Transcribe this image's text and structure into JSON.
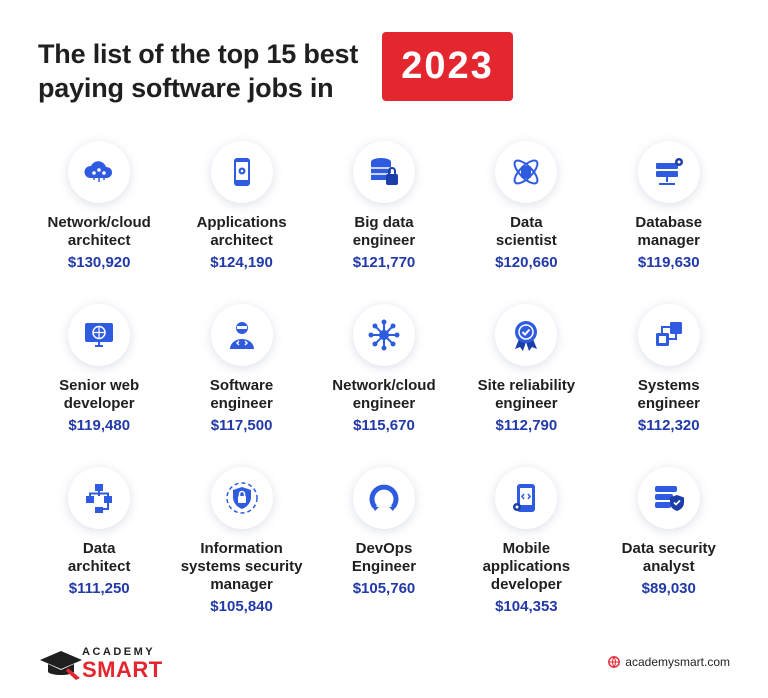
{
  "header": {
    "title": "The list of the top 15 best paying software jobs in",
    "year": "2023"
  },
  "colors": {
    "accent_red": "#e4262f",
    "salary_blue": "#2239a8",
    "icon_blue": "#2f5be0"
  },
  "jobs": [
    {
      "icon": "cloud-network-icon",
      "title": "Network/cloud\narchitect",
      "salary": "$130,920"
    },
    {
      "icon": "mobile-app-icon",
      "title": "Applications\narchitect",
      "salary": "$124,190"
    },
    {
      "icon": "database-lock-icon",
      "title": "Big data\nengineer",
      "salary": "$121,770"
    },
    {
      "icon": "atom-chip-icon",
      "title": "Data\nscientist",
      "salary": "$120,660"
    },
    {
      "icon": "server-gear-icon",
      "title": "Database\nmanager",
      "salary": "$119,630"
    },
    {
      "icon": "monitor-globe-icon",
      "title": "Senior web\ndeveloper",
      "salary": "$119,480"
    },
    {
      "icon": "developer-icon",
      "title": "Software\nengineer",
      "salary": "$117,500"
    },
    {
      "icon": "network-hub-icon",
      "title": "Network/cloud\nengineer",
      "salary": "$115,670"
    },
    {
      "icon": "award-badge-icon",
      "title": "Site reliability\nengineer",
      "salary": "$112,790"
    },
    {
      "icon": "circuit-chip-icon",
      "title": "Systems\nengineer",
      "salary": "$112,320"
    },
    {
      "icon": "hierarchy-icon",
      "title": "Data\narchitect",
      "salary": "$111,250"
    },
    {
      "icon": "shield-lock-icon",
      "title": "Information\nsystems security\nmanager",
      "salary": "$105,840"
    },
    {
      "icon": "devops-loop-icon",
      "title": "DevOps\nEngineer",
      "salary": "$105,760"
    },
    {
      "icon": "mobile-code-icon",
      "title": "Mobile\napplications\ndeveloper",
      "salary": "$104,353"
    },
    {
      "icon": "server-shield-icon",
      "title": "Data security\nanalyst",
      "salary": "$89,030"
    }
  ],
  "footer": {
    "logo_top": "ACADEMY",
    "logo_bottom": "SMART",
    "website": "academysmart.com"
  }
}
